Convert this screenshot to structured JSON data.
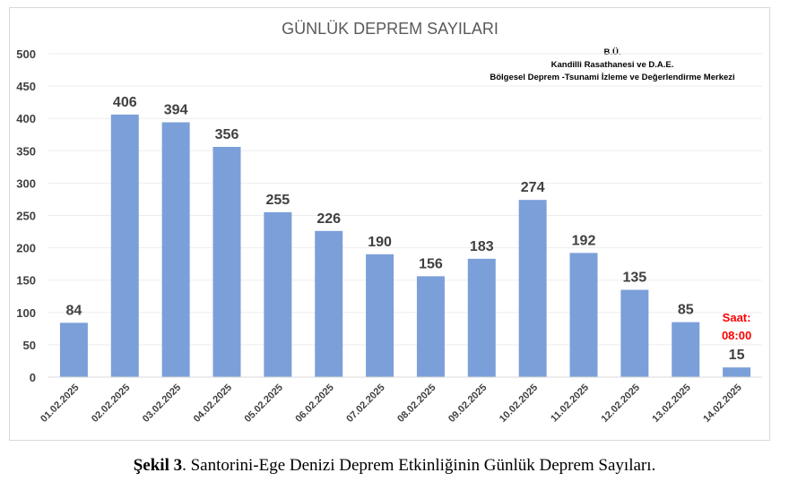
{
  "chart_data": {
    "type": "bar",
    "title": "GÜNLÜK DEPREM SAYILARI",
    "source_lines": [
      "B.Ü.",
      "Kandilli Rasathanesi ve D.A.E.",
      "Bölgesel Deprem -Tsunami İzleme ve Değerlendirme Merkezi"
    ],
    "categories": [
      "01.02.2025",
      "02.02.2025",
      "03.02.2025",
      "04.02.2025",
      "05.02.2025",
      "06.02.2025",
      "07.02.2025",
      "08.02.2025",
      "09.02.2025",
      "10.02.2025",
      "11.02.2025",
      "12.02.2025",
      "13.02.2025",
      "14.02.2025"
    ],
    "values": [
      84,
      406,
      394,
      356,
      255,
      226,
      190,
      156,
      183,
      274,
      192,
      135,
      85,
      15
    ],
    "ylim": [
      0,
      500
    ],
    "yticks": [
      0,
      50,
      100,
      150,
      200,
      250,
      300,
      350,
      400,
      450,
      500
    ],
    "grid": true,
    "bar_color": "#7b9fd9",
    "annotation": {
      "category": "14.02.2025",
      "lines": [
        "Saat:",
        "08:00"
      ],
      "color": "#ff0000"
    }
  },
  "caption": {
    "label": "Şekil 3",
    "text": ". Santorini-Ege Denizi Deprem Etkinliğinin Günlük Deprem Sayıları."
  }
}
